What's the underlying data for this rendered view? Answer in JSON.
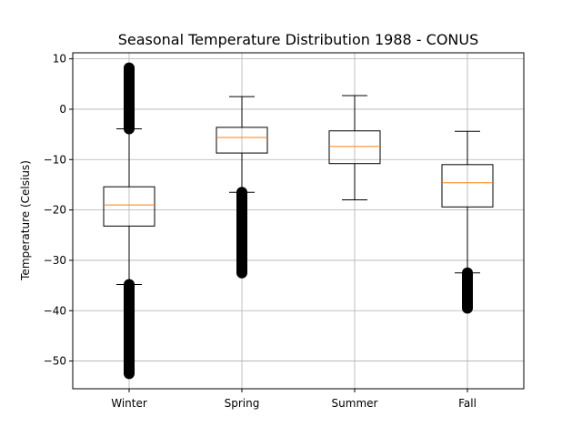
{
  "chart_data": {
    "type": "box",
    "title": "Seasonal Temperature Distribution 1988 - CONUS",
    "xlabel": "",
    "ylabel": "Temperature (Celsius)",
    "ylim": [
      -55.5,
      11.2
    ],
    "yticks": [
      10,
      0,
      -10,
      -20,
      -30,
      -40,
      -50
    ],
    "ytick_labels": [
      "10",
      "0",
      "−10",
      "−20",
      "−30",
      "−40",
      "−50"
    ],
    "grid": true,
    "categories": [
      "Winter",
      "Spring",
      "Summer",
      "Fall"
    ],
    "boxes": [
      {
        "label": "Winter",
        "whisker_low": -34.8,
        "q1": -23.2,
        "median": -19.0,
        "q3": -15.4,
        "whisker_high": -3.9,
        "outliers": [
          {
            "from": -52.5,
            "to": -34.8
          },
          {
            "from": -3.9,
            "to": 8.2
          }
        ]
      },
      {
        "label": "Spring",
        "whisker_low": -16.5,
        "q1": -8.7,
        "median": -5.6,
        "q3": -3.6,
        "whisker_high": 2.5,
        "outliers": [
          {
            "from": -32.5,
            "to": -16.5
          }
        ]
      },
      {
        "label": "Summer",
        "whisker_low": -18.0,
        "q1": -10.8,
        "median": -7.4,
        "q3": -4.3,
        "whisker_high": 2.7,
        "outliers": []
      },
      {
        "label": "Fall",
        "whisker_low": -32.5,
        "q1": -19.4,
        "median": -14.6,
        "q3": -11.0,
        "whisker_high": -4.4,
        "outliers": [
          {
            "from": -39.5,
            "to": -32.5
          }
        ]
      }
    ],
    "colors": {
      "box": "#000000",
      "median": "#ff7f0e",
      "grid": "#b0b0b0",
      "outlier": "#000000"
    }
  }
}
